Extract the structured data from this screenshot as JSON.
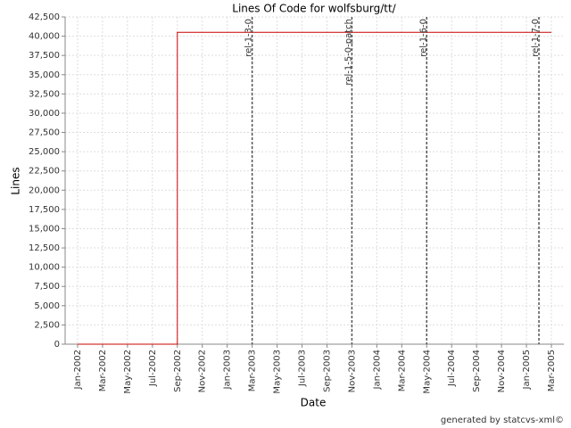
{
  "chart_data": {
    "type": "line",
    "title": "Lines Of Code for wolfsburg/tt/",
    "x_label": "Date",
    "y_label": "Lines",
    "credit": "generated by statcvs-xml©",
    "grid": true,
    "x": [
      "2002-01",
      "2002-09",
      "2002-09",
      "2005-03"
    ],
    "series": [
      {
        "name": "Lines",
        "color": "#cc0000",
        "values": [
          0,
          0,
          40500,
          40500
        ]
      }
    ],
    "xlim": [
      "2001-12",
      "2005-04"
    ],
    "xticks": [
      {
        "value": "2002-01",
        "label": "Jan-2002"
      },
      {
        "value": "2002-03",
        "label": "Mar-2002"
      },
      {
        "value": "2002-05",
        "label": "May-2002"
      },
      {
        "value": "2002-07",
        "label": "Jul-2002"
      },
      {
        "value": "2002-09",
        "label": "Sep-2002"
      },
      {
        "value": "2002-11",
        "label": "Nov-2002"
      },
      {
        "value": "2003-01",
        "label": "Jan-2003"
      },
      {
        "value": "2003-03",
        "label": "Mar-2003"
      },
      {
        "value": "2003-05",
        "label": "May-2003"
      },
      {
        "value": "2003-07",
        "label": "Jul-2003"
      },
      {
        "value": "2003-09",
        "label": "Sep-2003"
      },
      {
        "value": "2003-11",
        "label": "Nov-2003"
      },
      {
        "value": "2004-01",
        "label": "Jan-2004"
      },
      {
        "value": "2004-03",
        "label": "Mar-2004"
      },
      {
        "value": "2004-05",
        "label": "May-2004"
      },
      {
        "value": "2004-07",
        "label": "Jul-2004"
      },
      {
        "value": "2004-09",
        "label": "Sep-2004"
      },
      {
        "value": "2004-11",
        "label": "Nov-2004"
      },
      {
        "value": "2005-01",
        "label": "Jan-2005"
      },
      {
        "value": "2005-03",
        "label": "Mar-2005"
      }
    ],
    "ylim": [
      0,
      42500
    ],
    "yticks": [
      0,
      {
        "value": 2500,
        "label": "2,500"
      },
      {
        "value": 5000,
        "label": "5,000"
      },
      {
        "value": 7500,
        "label": "7,500"
      },
      {
        "value": 10000,
        "label": "10,000"
      },
      {
        "value": 12500,
        "label": "12,500"
      },
      {
        "value": 15000,
        "label": "15,000"
      },
      {
        "value": 17500,
        "label": "17,500"
      },
      {
        "value": 20000,
        "label": "20,000"
      },
      {
        "value": 22500,
        "label": "22,500"
      },
      {
        "value": 25000,
        "label": "25,000"
      },
      {
        "value": 27500,
        "label": "27,500"
      },
      {
        "value": 30000,
        "label": "30,000"
      },
      {
        "value": 32500,
        "label": "32,500"
      },
      {
        "value": 35000,
        "label": "35,000"
      },
      {
        "value": 37500,
        "label": "37,500"
      },
      {
        "value": 40000,
        "label": "40,000"
      },
      {
        "value": 42500,
        "label": "42,500"
      }
    ],
    "markers": [
      {
        "x": "2003-03",
        "label": "rel-1-3-0"
      },
      {
        "x": "2003-11",
        "label": "rel-1-5-0-patch"
      },
      {
        "x": "2004-05",
        "label": "rel-1-6-0"
      },
      {
        "x": "2005-02",
        "label": "rel-1-7-0"
      }
    ],
    "marker_color": "#555555"
  }
}
